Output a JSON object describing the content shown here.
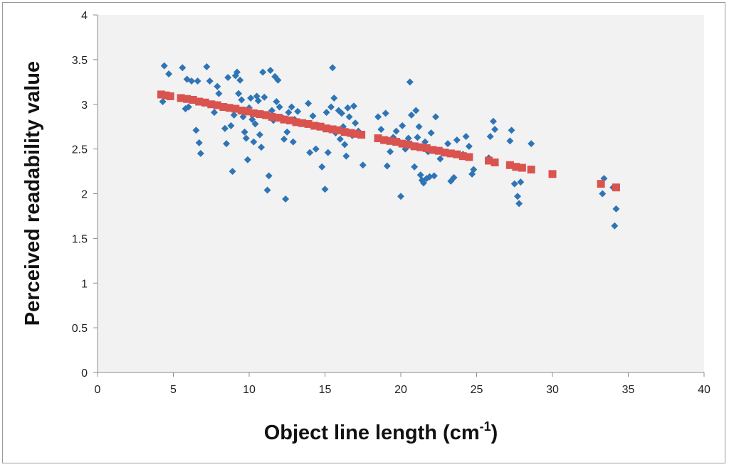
{
  "chart_data": {
    "type": "scatter",
    "title": "",
    "xlabel": "Object line length (cm",
    "xlabel_sup": "-1",
    "xlabel_end": ")",
    "ylabel": "Perceived readability value",
    "xlim": [
      0,
      40
    ],
    "ylim": [
      0,
      4
    ],
    "xticks": [
      "0",
      "5",
      "10",
      "15",
      "20",
      "25",
      "30",
      "35",
      "40"
    ],
    "yticks": [
      "0",
      "0.5",
      "1",
      "1.5",
      "2",
      "2.5",
      "3",
      "3.5",
      "4"
    ],
    "grid": false,
    "legend": "none",
    "plot_background": "#f2f2f2",
    "series": [
      {
        "marker": "diamond",
        "color": "#2e75b6",
        "points": [
          [
            4.3,
            3.03
          ],
          [
            4.4,
            3.43
          ],
          [
            4.7,
            3.34
          ],
          [
            5.6,
            3.41
          ],
          [
            5.8,
            2.95
          ],
          [
            5.9,
            3.28
          ],
          [
            6.0,
            2.97
          ],
          [
            6.2,
            3.26
          ],
          [
            6.5,
            2.71
          ],
          [
            6.6,
            3.26
          ],
          [
            6.7,
            2.57
          ],
          [
            6.8,
            2.45
          ],
          [
            7.0,
            3.01
          ],
          [
            7.2,
            3.42
          ],
          [
            7.4,
            3.26
          ],
          [
            7.7,
            2.91
          ],
          [
            7.9,
            3.2
          ],
          [
            8.0,
            3.12
          ],
          [
            8.4,
            2.73
          ],
          [
            8.5,
            2.56
          ],
          [
            8.6,
            3.3
          ],
          [
            8.8,
            2.76
          ],
          [
            8.9,
            2.25
          ],
          [
            9.0,
            2.88
          ],
          [
            9.1,
            3.32
          ],
          [
            9.2,
            3.36
          ],
          [
            9.3,
            3.12
          ],
          [
            9.4,
            3.27
          ],
          [
            9.5,
            3.05
          ],
          [
            9.6,
            2.86
          ],
          [
            9.7,
            2.69
          ],
          [
            9.8,
            2.62
          ],
          [
            9.9,
            2.38
          ],
          [
            10.0,
            2.96
          ],
          [
            10.1,
            3.07
          ],
          [
            10.2,
            2.83
          ],
          [
            10.3,
            2.58
          ],
          [
            10.4,
            2.78
          ],
          [
            10.5,
            3.09
          ],
          [
            10.6,
            3.04
          ],
          [
            10.7,
            2.66
          ],
          [
            10.8,
            2.52
          ],
          [
            10.9,
            3.36
          ],
          [
            11.0,
            3.08
          ],
          [
            11.1,
            2.87
          ],
          [
            11.2,
            2.04
          ],
          [
            11.3,
            2.2
          ],
          [
            11.4,
            3.38
          ],
          [
            11.5,
            2.93
          ],
          [
            11.6,
            2.82
          ],
          [
            11.7,
            3.31
          ],
          [
            11.8,
            3.03
          ],
          [
            11.9,
            3.27
          ],
          [
            12.0,
            2.97
          ],
          [
            12.2,
            2.85
          ],
          [
            12.3,
            2.61
          ],
          [
            12.4,
            1.94
          ],
          [
            12.5,
            2.69
          ],
          [
            12.6,
            2.91
          ],
          [
            12.8,
            2.97
          ],
          [
            12.9,
            2.58
          ],
          [
            13.0,
            2.83
          ],
          [
            13.2,
            2.92
          ],
          [
            13.7,
            2.79
          ],
          [
            13.9,
            3.01
          ],
          [
            14.0,
            2.46
          ],
          [
            14.2,
            2.87
          ],
          [
            14.4,
            2.5
          ],
          [
            14.6,
            2.76
          ],
          [
            14.8,
            2.3
          ],
          [
            15.0,
            2.05
          ],
          [
            15.1,
            2.91
          ],
          [
            15.2,
            2.46
          ],
          [
            15.4,
            2.97
          ],
          [
            15.5,
            3.41
          ],
          [
            15.6,
            3.07
          ],
          [
            15.7,
            2.68
          ],
          [
            15.9,
            2.93
          ],
          [
            16.0,
            2.61
          ],
          [
            16.1,
            2.9
          ],
          [
            16.2,
            2.75
          ],
          [
            16.3,
            2.55
          ],
          [
            16.4,
            2.42
          ],
          [
            16.5,
            2.96
          ],
          [
            16.6,
            2.86
          ],
          [
            16.8,
            2.65
          ],
          [
            16.9,
            2.98
          ],
          [
            17.0,
            2.79
          ],
          [
            17.2,
            2.7
          ],
          [
            17.5,
            2.32
          ],
          [
            18.5,
            2.86
          ],
          [
            18.7,
            2.72
          ],
          [
            19.0,
            2.9
          ],
          [
            19.1,
            2.31
          ],
          [
            19.3,
            2.47
          ],
          [
            19.5,
            2.63
          ],
          [
            19.7,
            2.7
          ],
          [
            19.9,
            2.58
          ],
          [
            20.0,
            1.97
          ],
          [
            20.1,
            2.76
          ],
          [
            20.3,
            2.5
          ],
          [
            20.5,
            2.62
          ],
          [
            20.6,
            3.25
          ],
          [
            20.7,
            2.88
          ],
          [
            20.8,
            2.54
          ],
          [
            20.9,
            2.3
          ],
          [
            21.0,
            2.93
          ],
          [
            21.1,
            2.63
          ],
          [
            21.2,
            2.75
          ],
          [
            21.3,
            2.21
          ],
          [
            21.4,
            2.15
          ],
          [
            21.5,
            2.12
          ],
          [
            21.6,
            2.58
          ],
          [
            21.7,
            2.17
          ],
          [
            21.8,
            2.47
          ],
          [
            21.9,
            2.19
          ],
          [
            22.0,
            2.68
          ],
          [
            22.2,
            2.2
          ],
          [
            22.3,
            2.86
          ],
          [
            22.6,
            2.39
          ],
          [
            22.8,
            2.47
          ],
          [
            23.1,
            2.56
          ],
          [
            23.3,
            2.14
          ],
          [
            23.5,
            2.18
          ],
          [
            23.7,
            2.6
          ],
          [
            24.1,
            2.44
          ],
          [
            24.3,
            2.64
          ],
          [
            24.5,
            2.53
          ],
          [
            24.7,
            2.22
          ],
          [
            24.8,
            2.27
          ],
          [
            25.8,
            2.4
          ],
          [
            25.9,
            2.64
          ],
          [
            26.1,
            2.81
          ],
          [
            26.2,
            2.72
          ],
          [
            27.2,
            2.59
          ],
          [
            27.3,
            2.71
          ],
          [
            27.5,
            2.11
          ],
          [
            27.7,
            1.97
          ],
          [
            27.8,
            1.89
          ],
          [
            27.9,
            2.13
          ],
          [
            28.6,
            2.56
          ],
          [
            33.3,
            2.0
          ],
          [
            33.4,
            2.17
          ],
          [
            34.1,
            1.64
          ],
          [
            34.2,
            1.83
          ],
          [
            34.0,
            2.07
          ]
        ]
      },
      {
        "marker": "square",
        "color": "#d9534f",
        "points": [
          [
            4.2,
            3.11
          ],
          [
            4.5,
            3.1
          ],
          [
            4.8,
            3.09
          ],
          [
            5.5,
            3.07
          ],
          [
            5.9,
            3.06
          ],
          [
            6.3,
            3.05
          ],
          [
            6.7,
            3.03
          ],
          [
            7.1,
            3.02
          ],
          [
            7.5,
            3.0
          ],
          [
            7.9,
            2.99
          ],
          [
            8.3,
            2.97
          ],
          [
            8.7,
            2.96
          ],
          [
            9.1,
            2.95
          ],
          [
            9.5,
            2.93
          ],
          [
            9.9,
            2.92
          ],
          [
            10.3,
            2.9
          ],
          [
            10.7,
            2.89
          ],
          [
            11.1,
            2.88
          ],
          [
            11.5,
            2.86
          ],
          [
            11.9,
            2.85
          ],
          [
            12.3,
            2.83
          ],
          [
            12.7,
            2.82
          ],
          [
            13.1,
            2.8
          ],
          [
            13.5,
            2.79
          ],
          [
            13.9,
            2.78
          ],
          [
            14.3,
            2.76
          ],
          [
            14.7,
            2.75
          ],
          [
            15.1,
            2.73
          ],
          [
            15.5,
            2.72
          ],
          [
            15.9,
            2.71
          ],
          [
            16.3,
            2.69
          ],
          [
            16.7,
            2.68
          ],
          [
            17.0,
            2.67
          ],
          [
            17.4,
            2.66
          ],
          [
            18.5,
            2.62
          ],
          [
            18.9,
            2.6
          ],
          [
            19.3,
            2.59
          ],
          [
            19.7,
            2.58
          ],
          [
            20.1,
            2.56
          ],
          [
            20.5,
            2.55
          ],
          [
            20.9,
            2.53
          ],
          [
            21.3,
            2.52
          ],
          [
            21.7,
            2.51
          ],
          [
            22.1,
            2.49
          ],
          [
            22.5,
            2.48
          ],
          [
            22.9,
            2.46
          ],
          [
            23.3,
            2.45
          ],
          [
            23.7,
            2.44
          ],
          [
            24.1,
            2.42
          ],
          [
            24.5,
            2.41
          ],
          [
            25.8,
            2.37
          ],
          [
            26.2,
            2.35
          ],
          [
            27.2,
            2.32
          ],
          [
            27.6,
            2.3
          ],
          [
            28.0,
            2.29
          ],
          [
            28.6,
            2.27
          ],
          [
            30.0,
            2.22
          ],
          [
            33.2,
            2.11
          ],
          [
            34.2,
            2.07
          ]
        ]
      }
    ]
  }
}
